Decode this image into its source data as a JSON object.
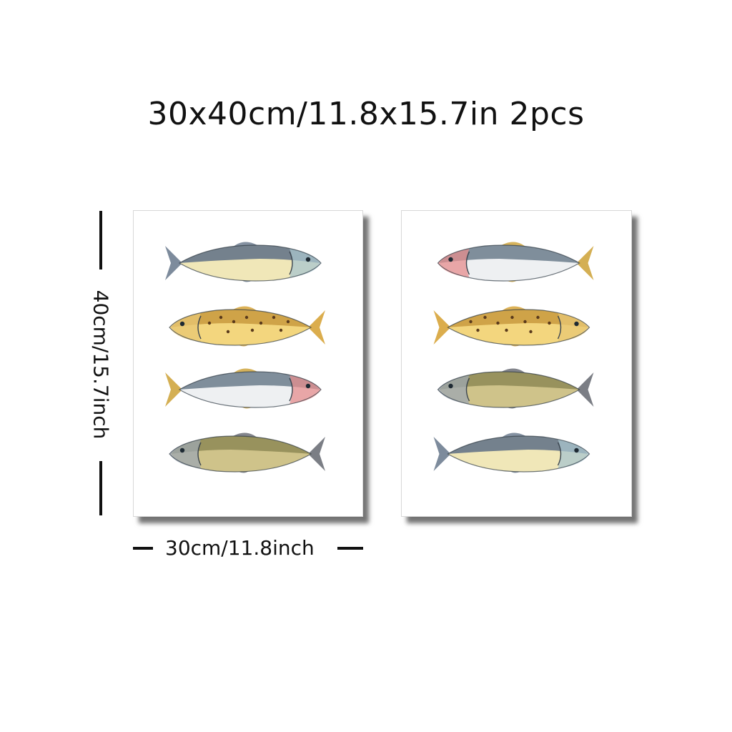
{
  "headline": "30x40cm/11.8x15.7in 2pcs",
  "height_label": "40cm/15.7inch",
  "width_label": "30cm/11.8inch",
  "panels": [
    {
      "name": "left-print",
      "fish": [
        {
          "species": "tuna-icon",
          "colors": {
            "back": "#5e6f85",
            "belly": "#f0e7b8",
            "fin": "#6f7e91",
            "head": "#a9c6cf"
          },
          "facing": "right"
        },
        {
          "species": "brown-trout-icon",
          "colors": {
            "back": "#c89a3e",
            "belly": "#f3d67e",
            "fin": "#d7a43a",
            "head": "#e8c774"
          },
          "facing": "left"
        },
        {
          "species": "largemouth-bass-icon",
          "colors": {
            "back": "#6b7d8c",
            "belly": "#eef0f2",
            "fin": "#cfa640",
            "head": "#e58e8e"
          },
          "facing": "right"
        },
        {
          "species": "bream-icon",
          "colors": {
            "back": "#8e8a55",
            "belly": "#cfc38a",
            "fin": "#6d7078",
            "head": "#9ea7b1"
          },
          "facing": "left"
        }
      ]
    },
    {
      "name": "right-print",
      "fish": [
        {
          "species": "largemouth-bass-icon",
          "colors": {
            "back": "#6b7d8c",
            "belly": "#eef0f2",
            "fin": "#cfa640",
            "head": "#e58e8e"
          },
          "facing": "left"
        },
        {
          "species": "brown-trout-icon",
          "colors": {
            "back": "#c89a3e",
            "belly": "#f3d67e",
            "fin": "#d7a43a",
            "head": "#e8c774"
          },
          "facing": "right"
        },
        {
          "species": "bream-icon",
          "colors": {
            "back": "#8e8a55",
            "belly": "#cfc38a",
            "fin": "#6d7078",
            "head": "#9ea7b1"
          },
          "facing": "left"
        },
        {
          "species": "tuna-icon",
          "colors": {
            "back": "#5e6f85",
            "belly": "#f0e7b8",
            "fin": "#6f7e91",
            "head": "#a9c6cf"
          },
          "facing": "right"
        }
      ]
    }
  ]
}
